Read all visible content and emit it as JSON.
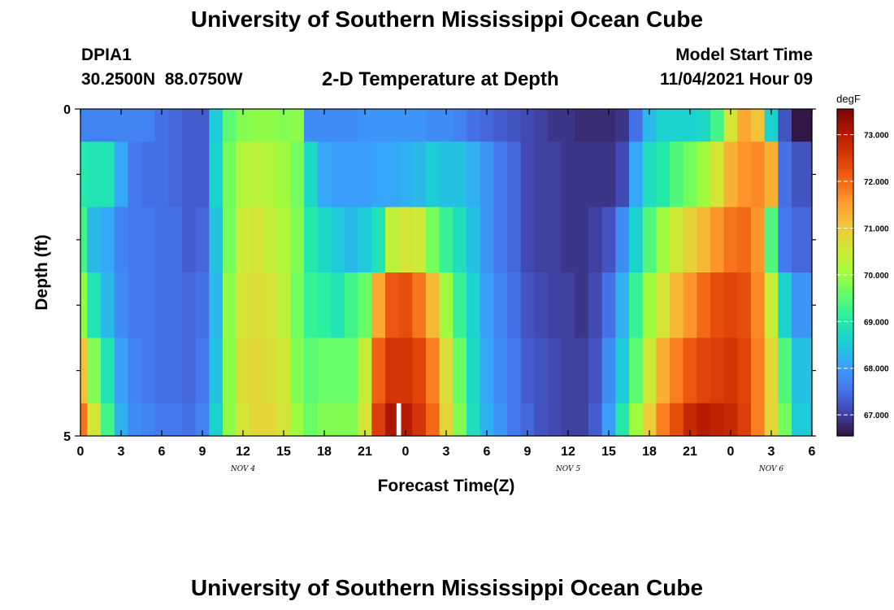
{
  "page": {
    "title": "University of Southern Mississippi Ocean Cube",
    "station_id": "DPIA1",
    "station_coords": "30.2500N  88.0750W",
    "plot_title": "2-D Temperature at Depth",
    "model_start_label": "Model Start Time",
    "model_start_value": "11/04/2021 Hour 09",
    "footer_title": "University of Southern Mississippi Ocean Cube"
  },
  "chart_data": {
    "type": "heatmap",
    "title": "2-D Temperature at Depth",
    "xlabel": "Forecast Time(Z)",
    "ylabel": "Depth (ft)",
    "x_tick_labels": [
      "0",
      "3",
      "6",
      "9",
      "12",
      "15",
      "18",
      "21",
      "0",
      "3",
      "6",
      "9",
      "12",
      "15",
      "18",
      "21",
      "0",
      "3",
      "6"
    ],
    "x_hours": [
      0,
      1,
      2,
      3,
      4,
      5,
      6,
      7,
      8,
      9,
      10,
      11,
      12,
      13,
      14,
      15,
      16,
      17,
      18,
      19,
      20,
      21,
      22,
      23,
      24,
      25,
      26,
      27,
      28,
      29,
      30,
      31,
      32,
      33,
      34,
      35,
      36,
      37,
      38,
      39,
      40,
      41,
      42,
      43,
      44,
      45,
      46,
      47,
      48,
      49,
      50,
      51,
      52,
      53,
      54
    ],
    "xlim": [
      0,
      54
    ],
    "date_labels": [
      {
        "text": "NOV 4",
        "hour": 12
      },
      {
        "text": "NOV 5",
        "hour": 36
      },
      {
        "text": "NOV 6",
        "hour": 51
      }
    ],
    "y_tick_labels": [
      "0",
      "5"
    ],
    "ylim": [
      0,
      5
    ],
    "depth_bands": [
      0,
      0.5,
      1.5,
      2.5,
      3.5,
      4.5,
      5
    ],
    "colorbar": {
      "unit": "degF",
      "min": 66.55,
      "max": 73.55,
      "tick_labels": [
        "67.000",
        "68.000",
        "69.000",
        "70.000",
        "71.000",
        "72.000",
        "73.000"
      ],
      "tick_values": [
        67,
        68,
        69,
        70,
        71,
        72,
        73
      ],
      "colormap": [
        "#30123b",
        "#4145ab",
        "#4675ed",
        "#39a2fc",
        "#1bcfd4",
        "#24eca6",
        "#61fc6c",
        "#a4fc3b",
        "#d1e834",
        "#f3c63a",
        "#fe9b2d",
        "#f36315",
        "#d93806",
        "#b11901",
        "#7a0402"
      ]
    },
    "missing": [
      {
        "hour": 23.5,
        "depth_band": 5
      }
    ],
    "values": [
      [
        67.7,
        67.7,
        67.7,
        67.7,
        67.7,
        67.7,
        67.5,
        67.4,
        67.3,
        67.3,
        68.5,
        69.5,
        69.8,
        69.9,
        69.9,
        69.8,
        69.9,
        67.8,
        67.8,
        67.8,
        67.8,
        67.9,
        67.9,
        67.9,
        67.9,
        67.9,
        67.8,
        67.8,
        67.7,
        67.5,
        67.4,
        67.3,
        67.2,
        67.1,
        67.0,
        66.9,
        66.9,
        66.8,
        66.8,
        66.8,
        66.9,
        67.5,
        68.3,
        68.6,
        68.6,
        68.6,
        68.7,
        69.3,
        70.6,
        71.4,
        71.1,
        68.6,
        67.2,
        66.6,
        66.6
      ],
      [
        69.0,
        68.9,
        68.9,
        68.1,
        67.6,
        67.5,
        67.5,
        67.4,
        67.3,
        67.3,
        68.6,
        69.7,
        70.2,
        70.3,
        70.2,
        70.0,
        69.7,
        68.7,
        68.1,
        68.0,
        68.0,
        68.0,
        68.1,
        68.1,
        68.2,
        68.3,
        68.5,
        68.4,
        68.4,
        68.2,
        67.9,
        67.6,
        67.4,
        67.1,
        67.0,
        67.0,
        66.9,
        66.9,
        66.9,
        66.9,
        67.1,
        68.1,
        68.8,
        69.0,
        69.4,
        69.7,
        70.0,
        70.6,
        71.3,
        71.6,
        71.7,
        71.3,
        67.5,
        67.2,
        67.2
      ],
      [
        69.3,
        68.3,
        68.1,
        67.7,
        67.6,
        67.6,
        67.5,
        67.5,
        67.3,
        67.4,
        68.4,
        69.7,
        70.5,
        70.6,
        70.4,
        70.2,
        69.8,
        69.0,
        68.7,
        68.5,
        68.3,
        68.5,
        68.9,
        70.3,
        70.6,
        70.5,
        69.7,
        69.2,
        68.8,
        68.4,
        67.9,
        67.6,
        67.4,
        67.1,
        67.0,
        67.0,
        66.9,
        66.9,
        67.0,
        67.2,
        67.8,
        68.6,
        69.4,
        70.0,
        70.5,
        70.9,
        71.2,
        71.6,
        71.9,
        72.0,
        71.6,
        69.4,
        67.6,
        67.4,
        67.4
      ],
      [
        69.9,
        68.9,
        68.3,
        67.8,
        67.6,
        67.6,
        67.5,
        67.5,
        67.4,
        67.5,
        68.3,
        69.9,
        70.6,
        70.7,
        70.6,
        70.3,
        69.7,
        69.2,
        69.1,
        68.9,
        69.3,
        69.6,
        71.4,
        72.2,
        72.3,
        71.9,
        71.2,
        70.0,
        69.2,
        68.6,
        68.0,
        67.7,
        67.5,
        67.2,
        67.1,
        67.0,
        67.0,
        66.9,
        67.1,
        67.5,
        68.2,
        69.2,
        70.0,
        70.6,
        71.2,
        71.6,
        72.0,
        72.3,
        72.4,
        72.3,
        71.7,
        70.4,
        68.6,
        67.9,
        67.9
      ],
      [
        71.1,
        69.8,
        68.9,
        68.0,
        67.7,
        67.6,
        67.5,
        67.5,
        67.4,
        67.6,
        68.4,
        69.9,
        70.7,
        70.8,
        70.7,
        70.5,
        69.8,
        69.5,
        69.6,
        69.6,
        69.6,
        70.4,
        72.1,
        72.6,
        72.6,
        72.4,
        71.8,
        70.7,
        69.6,
        68.7,
        68.1,
        67.8,
        67.6,
        67.3,
        67.2,
        67.1,
        67.0,
        67.0,
        67.2,
        67.8,
        68.5,
        69.5,
        70.5,
        71.3,
        71.8,
        72.2,
        72.4,
        72.5,
        72.6,
        72.4,
        71.8,
        70.8,
        69.4,
        68.4,
        68.4
      ],
      [
        71.9,
        70.6,
        69.3,
        68.2,
        67.8,
        67.7,
        67.6,
        67.6,
        67.5,
        67.7,
        68.6,
        69.9,
        70.6,
        70.8,
        70.8,
        70.6,
        70.0,
        69.6,
        69.8,
        69.8,
        69.8,
        70.6,
        72.5,
        73.1,
        73.0,
        72.6,
        72.0,
        70.8,
        69.8,
        68.8,
        68.2,
        67.9,
        67.6,
        67.4,
        67.2,
        67.1,
        67.0,
        67.0,
        67.3,
        68.0,
        69.0,
        70.0,
        70.9,
        71.8,
        72.3,
        72.8,
        73.0,
        72.9,
        72.8,
        72.5,
        71.8,
        70.8,
        69.7,
        68.5,
        68.5
      ]
    ]
  }
}
